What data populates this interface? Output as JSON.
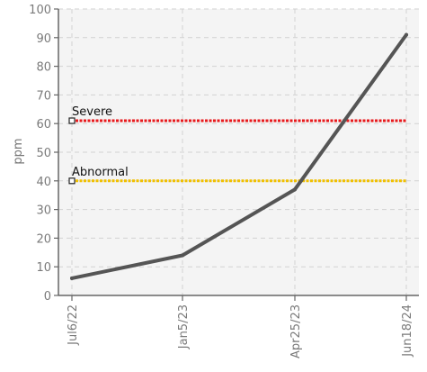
{
  "chart_data": {
    "type": "line",
    "title": "",
    "xlabel": "",
    "ylabel": "ppm",
    "ylim": [
      0,
      100
    ],
    "yticks": [
      0,
      10,
      20,
      30,
      40,
      50,
      60,
      70,
      80,
      90,
      100
    ],
    "x_tick_labels": [
      "Jul6/22",
      "Jan5/23",
      "Apr25/23",
      "Jun18/24"
    ],
    "series": [
      {
        "values": [
          {
            "x": "Jul6/22",
            "y": 6
          },
          {
            "x": "Jan5/23",
            "y": 14
          },
          {
            "x": "Apr25/23",
            "y": 37
          },
          {
            "x": "Jun18/24",
            "y": 91
          }
        ],
        "color": "#555555"
      }
    ],
    "thresholds": [
      {
        "name": "Severe",
        "value": 61,
        "color": "#e8191c"
      },
      {
        "name": "Abnormal",
        "value": 40,
        "color": "#f0c000"
      }
    ],
    "grid": true,
    "plot_background": "#f4f4f4"
  }
}
